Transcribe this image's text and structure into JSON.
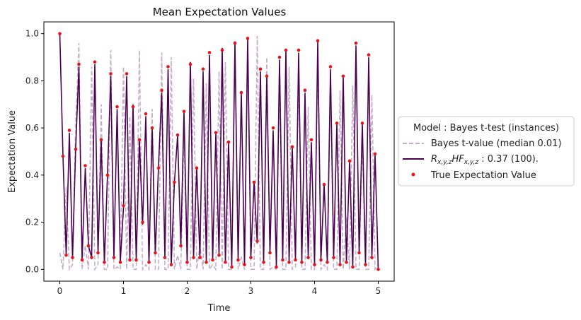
{
  "chart_data": {
    "type": "line",
    "title": "Mean Expectation Values",
    "xlabel": "Time",
    "ylabel": "Expectation Value",
    "xlim": [
      -0.25,
      5.25
    ],
    "ylim": [
      -0.05,
      1.05
    ],
    "xticks": [
      "0",
      "1",
      "2",
      "3",
      "4",
      "5"
    ],
    "yticks": [
      "0.0",
      "0.2",
      "0.4",
      "0.6",
      "0.8",
      "1.0"
    ],
    "grid": false,
    "legend": {
      "placement": "right-outside",
      "title": "Model : Bayes t-test (instances)",
      "entries": [
        {
          "label": "Bayes t-value (median 0.01)",
          "style": "dashed-line",
          "color": "#c3aac8"
        },
        {
          "label_main": "R",
          "label_sub1": "x,y,z",
          "label_mid": "HF",
          "label_sub2": "x,y,z",
          "label_rest": " : 0.37 (100).",
          "style": "solid-line",
          "color": "#4b0050"
        },
        {
          "label": "True Expectation Value",
          "style": "scatter",
          "color": "#e8141c"
        }
      ]
    },
    "x": [
      0.0,
      0.05,
      0.1,
      0.15,
      0.2,
      0.25,
      0.3,
      0.35,
      0.4,
      0.45,
      0.5,
      0.55,
      0.6,
      0.65,
      0.7,
      0.75,
      0.8,
      0.85,
      0.9,
      0.95,
      1.0,
      1.05,
      1.1,
      1.15,
      1.2,
      1.25,
      1.3,
      1.35,
      1.4,
      1.45,
      1.5,
      1.55,
      1.6,
      1.65,
      1.7,
      1.75,
      1.8,
      1.85,
      1.9,
      1.95,
      2.0,
      2.05,
      2.1,
      2.15,
      2.2,
      2.25,
      2.3,
      2.35,
      2.4,
      2.45,
      2.5,
      2.55,
      2.6,
      2.65,
      2.7,
      2.75,
      2.8,
      2.85,
      2.9,
      2.95,
      3.0,
      3.05,
      3.1,
      3.15,
      3.2,
      3.25,
      3.3,
      3.35,
      3.4,
      3.45,
      3.5,
      3.55,
      3.6,
      3.65,
      3.7,
      3.75,
      3.8,
      3.85,
      3.9,
      3.95,
      4.0,
      4.05,
      4.1,
      4.15,
      4.2,
      4.25,
      4.3,
      4.35,
      4.4,
      4.45,
      4.5,
      4.55,
      4.6,
      4.65,
      4.7,
      4.75,
      4.8,
      4.85,
      4.9,
      4.95,
      5.0
    ],
    "series": [
      {
        "name": "Bayes t-value (median 0.01)",
        "values": [
          0.07,
          0.0,
          0.35,
          0.0,
          0.02,
          0.62,
          0.96,
          0.0,
          0.1,
          0.0,
          0.86,
          0.0,
          0.02,
          0.7,
          0.0,
          0.0,
          0.93,
          0.0,
          0.01,
          0.0,
          0.86,
          0.0,
          0.65,
          0.0,
          0.0,
          0.93,
          0.0,
          0.02,
          0.0,
          0.68,
          0.0,
          0.0,
          0.92,
          0.0,
          0.0,
          0.9,
          0.0,
          0.06,
          0.0,
          0.58,
          0.0,
          0.0,
          0.81,
          0.0,
          0.1,
          0.0,
          0.79,
          0.0,
          0.02,
          0.0,
          0.84,
          0.0,
          0.88,
          0.0,
          0.0,
          0.97,
          0.0,
          0.05,
          0.0,
          0.98,
          0.0,
          0.0,
          0.99,
          0.0,
          0.0,
          0.9,
          0.0,
          0.01,
          0.0,
          0.86,
          0.0,
          0.0,
          0.86,
          0.0,
          0.01,
          0.88,
          0.0,
          0.0,
          0.69,
          0.0,
          0.0,
          0.92,
          0.0,
          0.02,
          0.0,
          0.82,
          0.0,
          0.0,
          0.76,
          0.0,
          0.22,
          0.0,
          0.78,
          0.0,
          0.0,
          0.56,
          0.0,
          0.0,
          0.74,
          0.0,
          0.02
        ]
      },
      {
        "name": "R_x,y,z HF_x,y,z : 0.37 (100).",
        "values": [
          1.0,
          0.48,
          0.06,
          0.58,
          0.05,
          0.52,
          0.86,
          0.04,
          0.43,
          0.1,
          0.05,
          0.87,
          0.07,
          0.55,
          0.03,
          0.41,
          0.82,
          0.05,
          0.68,
          0.03,
          0.26,
          0.82,
          0.04,
          0.7,
          0.04,
          0.55,
          0.19,
          0.65,
          0.03,
          0.6,
          0.07,
          0.44,
          0.75,
          0.05,
          0.85,
          0.02,
          0.37,
          0.57,
          0.1,
          0.67,
          0.03,
          0.88,
          0.05,
          0.43,
          0.05,
          0.84,
          0.03,
          0.91,
          0.04,
          0.58,
          0.06,
          0.94,
          0.03,
          0.54,
          0.01,
          0.96,
          0.04,
          0.75,
          0.02,
          0.98,
          0.05,
          0.37,
          0.11,
          0.84,
          0.03,
          0.82,
          0.07,
          0.59,
          0.01,
          0.89,
          0.04,
          0.93,
          0.03,
          0.52,
          0.04,
          0.92,
          0.03,
          0.75,
          0.05,
          0.54,
          0.02,
          0.97,
          0.04,
          0.36,
          0.03,
          0.85,
          0.05,
          0.62,
          0.02,
          0.82,
          0.03,
          0.46,
          0.01,
          0.95,
          0.07,
          0.62,
          0.02,
          0.9,
          0.05,
          0.49,
          0.0
        ]
      },
      {
        "name": "True Expectation Value",
        "values": [
          1.0,
          0.48,
          0.06,
          0.59,
          0.05,
          0.51,
          0.87,
          0.04,
          0.44,
          0.1,
          0.05,
          0.88,
          0.07,
          0.55,
          0.03,
          0.4,
          0.83,
          0.05,
          0.69,
          0.03,
          0.27,
          0.83,
          0.04,
          0.69,
          0.04,
          0.55,
          0.2,
          0.66,
          0.03,
          0.6,
          0.07,
          0.43,
          0.76,
          0.05,
          0.86,
          0.02,
          0.37,
          0.57,
          0.1,
          0.67,
          0.03,
          0.87,
          0.05,
          0.43,
          0.05,
          0.85,
          0.03,
          0.92,
          0.04,
          0.58,
          0.06,
          0.93,
          0.03,
          0.54,
          0.01,
          0.96,
          0.04,
          0.75,
          0.02,
          0.98,
          0.05,
          0.37,
          0.12,
          0.85,
          0.03,
          0.82,
          0.07,
          0.6,
          0.01,
          0.9,
          0.04,
          0.93,
          0.03,
          0.52,
          0.04,
          0.93,
          0.03,
          0.76,
          0.05,
          0.55,
          0.02,
          0.97,
          0.04,
          0.36,
          0.03,
          0.86,
          0.05,
          0.62,
          0.02,
          0.82,
          0.03,
          0.46,
          0.01,
          0.96,
          0.07,
          0.62,
          0.02,
          0.91,
          0.05,
          0.49,
          0.0
        ]
      }
    ]
  }
}
